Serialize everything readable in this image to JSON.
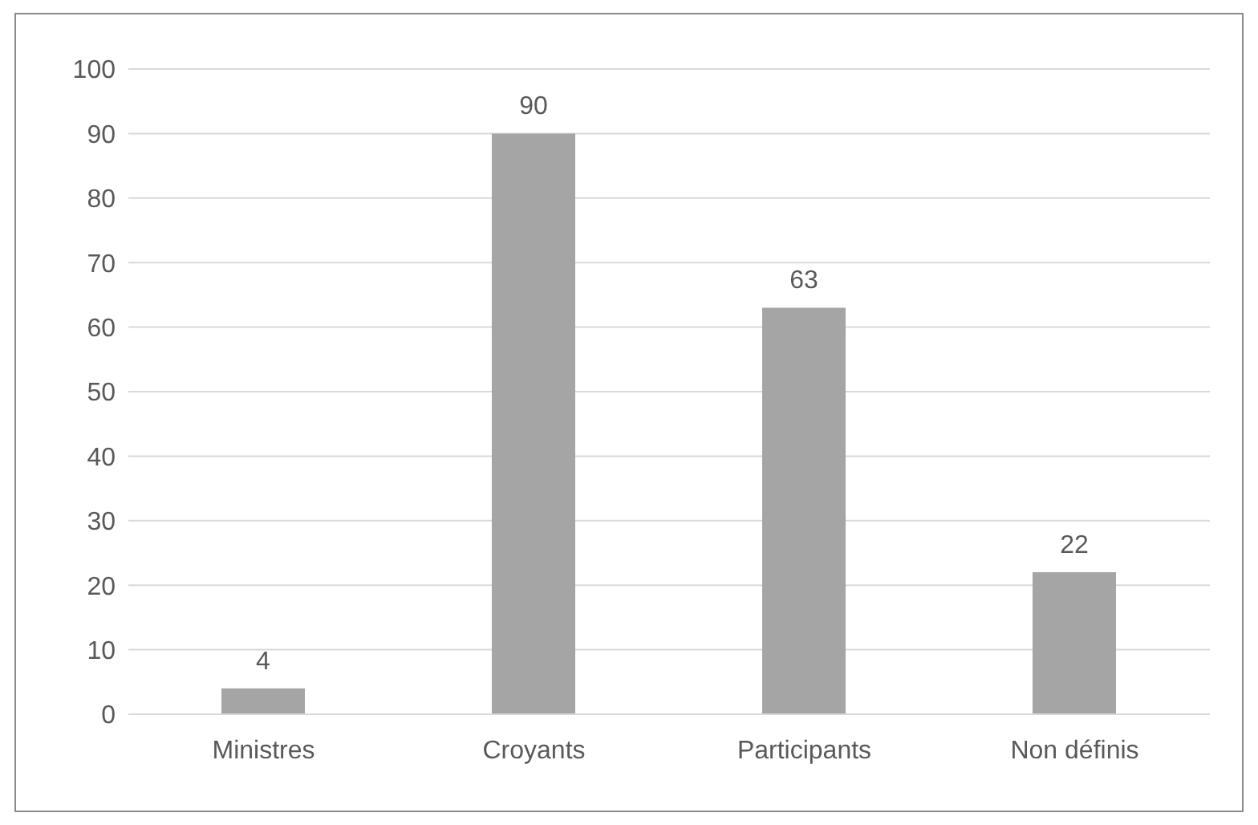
{
  "chart_data": {
    "type": "bar",
    "categories": [
      "Ministres",
      "Croyants",
      "Participants",
      "Non définis"
    ],
    "values": [
      4,
      90,
      63,
      22
    ],
    "color": "#a5a5a5",
    "ylim": [
      0,
      100
    ],
    "yticks": [
      0,
      10,
      20,
      30,
      40,
      50,
      60,
      70,
      80,
      90,
      100
    ],
    "grid": "y",
    "data_labels": true
  }
}
